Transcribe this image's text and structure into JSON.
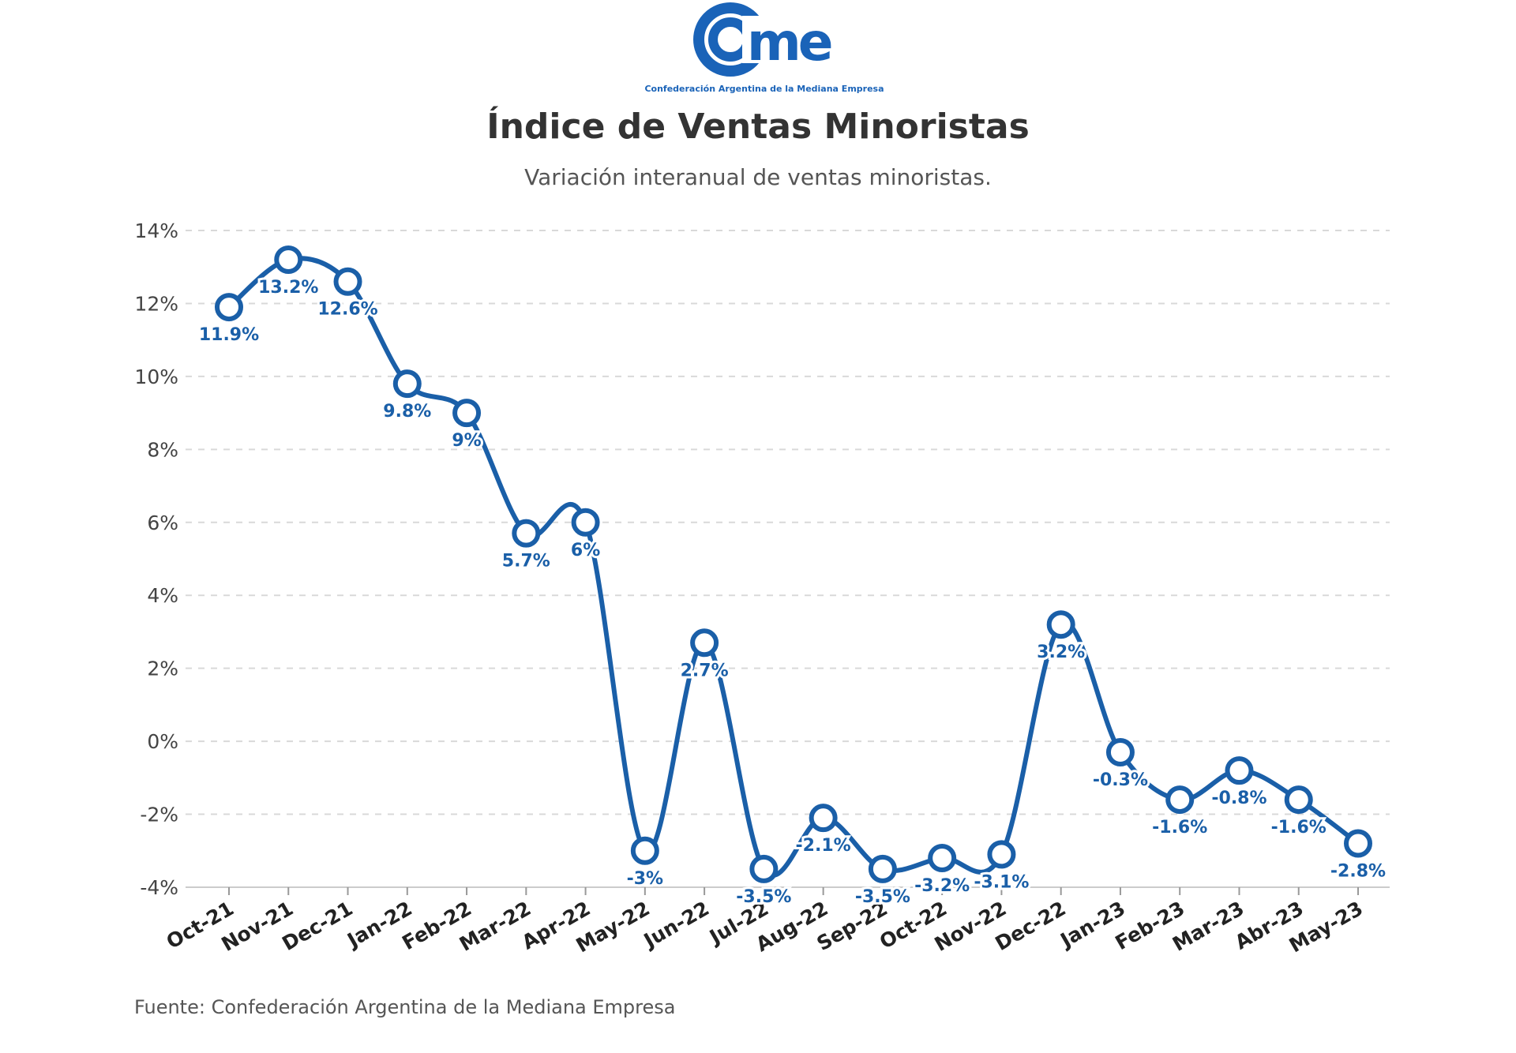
{
  "logo": {
    "wordmark": "came",
    "tagline": "Confederación Argentina de la Mediana Empresa"
  },
  "header": {
    "title": "Índice de Ventas Minoristas",
    "subtitle": "Variación interanual de ventas minoristas."
  },
  "footer": {
    "source": "Fuente: Confederación Argentina de la Mediana Empresa"
  },
  "colors": {
    "series": "#1a5fa8",
    "grid": "#d9d9d9",
    "logo": "#1a63b8"
  },
  "chart_data": {
    "type": "line",
    "title": "Índice de Ventas Minoristas",
    "subtitle": "Variación interanual de ventas minoristas.",
    "xlabel": "",
    "ylabel": "",
    "ylim": [
      -4,
      14
    ],
    "yticks": [
      "14%",
      "12%",
      "10%",
      "8%",
      "6%",
      "4%",
      "2%",
      "0%",
      "-2%",
      "-4%"
    ],
    "grid": "horizontal dashed",
    "categories": [
      "Oct-21",
      "Nov-21",
      "Dec-21",
      "Jan-22",
      "Feb-22",
      "Mar-22",
      "Apr-22",
      "May-22",
      "Jun-22",
      "Jul-22",
      "Aug-22",
      "Sep-22",
      "Oct-22",
      "Nov-22",
      "Dec-22",
      "Jan-23",
      "Feb-23",
      "Mar-23",
      "Abr-23",
      "May-23"
    ],
    "series": [
      {
        "values": [
          11.9,
          13.2,
          12.6,
          9.8,
          9,
          5.7,
          6,
          -3,
          2.7,
          -3.5,
          -2.1,
          -3.5,
          -3.2,
          -3.1,
          3.2,
          -0.3,
          -1.6,
          -0.8,
          -1.6,
          -2.8
        ],
        "labels": [
          "11.9%",
          "13.2%",
          "12.6%",
          "9.8%",
          "9%",
          "5.7%",
          "6%",
          "-3%",
          "2.7%",
          "-3.5%",
          "-2.1%",
          "-3.5%",
          "-3.2%",
          "-3.1%",
          "3.2%",
          "-0.3%",
          "-1.6%",
          "-0.8%",
          "-1.6%",
          "-2.8%"
        ]
      }
    ]
  }
}
